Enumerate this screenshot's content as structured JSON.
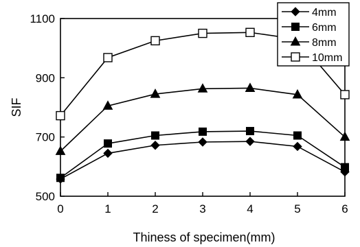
{
  "chart_data": {
    "type": "line",
    "xlabel": "Thiness of specimen(mm)",
    "ylabel": "SIF",
    "xlim": [
      0,
      6
    ],
    "ylim": [
      500,
      1100
    ],
    "x_ticks": [
      0,
      1,
      2,
      3,
      4,
      5,
      6
    ],
    "y_ticks": [
      500,
      700,
      900,
      1100
    ],
    "grid": false,
    "legend_position": "top-right",
    "x": [
      0,
      1,
      2,
      3,
      4,
      5,
      6
    ],
    "series": [
      {
        "name": "4mm",
        "marker": "diamond",
        "color": "#000000",
        "values": [
          558,
          645,
          672,
          683,
          685,
          668,
          582
        ]
      },
      {
        "name": "6mm",
        "marker": "square",
        "color": "#000000",
        "values": [
          562,
          678,
          705,
          718,
          720,
          705,
          598
        ]
      },
      {
        "name": "8mm",
        "marker": "triangle",
        "color": "#000000",
        "values": [
          652,
          805,
          845,
          863,
          865,
          843,
          700
        ]
      },
      {
        "name": "10mm",
        "marker": "square-open",
        "color": "#000000",
        "values": [
          772,
          968,
          1025,
          1050,
          1053,
          1030,
          843
        ]
      }
    ]
  }
}
